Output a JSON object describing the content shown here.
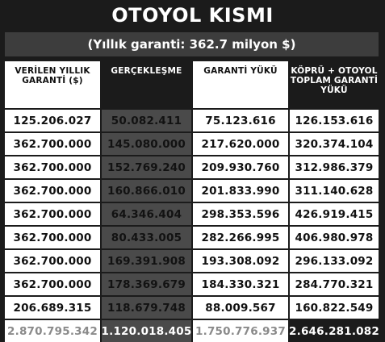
{
  "title": "OTOYOL KISMI",
  "subtitle": "(Yıllık garanti: 362.7 milyon $)",
  "headers": [
    "VERİLEN YILLIK GARANTİ ($)",
    "GERÇEKLEŞME",
    "GARANTİ YÜKÜ",
    "KÖPRÜ + OTOYOL TOPLAM GARANTİ YÜKÜ"
  ],
  "rows": [
    [
      "125.206.027",
      "50.082.411",
      "75.123.616",
      "126.153.616"
    ],
    [
      "362.700.000",
      "145.080.000",
      "217.620.000",
      "320.374.104"
    ],
    [
      "362.700.000",
      "152.769.240",
      "209.930.760",
      "312.986.379"
    ],
    [
      "362.700.000",
      "160.866.010",
      "201.833.990",
      "311.140.628"
    ],
    [
      "362.700.000",
      "64.346.404",
      "298.353.596",
      "426.919.415"
    ],
    [
      "362.700.000",
      "80.433.005",
      "282.266.995",
      "406.980.978"
    ],
    [
      "362.700.000",
      "169.391.908",
      "193.308.092",
      "296.133.092"
    ],
    [
      "362.700.000",
      "178.369.679",
      "184.330.321",
      "284.770.321"
    ],
    [
      "206.689.315",
      "118.679.748",
      "88.009.567",
      "160.822.549"
    ]
  ],
  "totals": [
    "2.870.795.342",
    "1.120.018.405",
    "1.750.776.937",
    "2.646.281.082"
  ]
}
